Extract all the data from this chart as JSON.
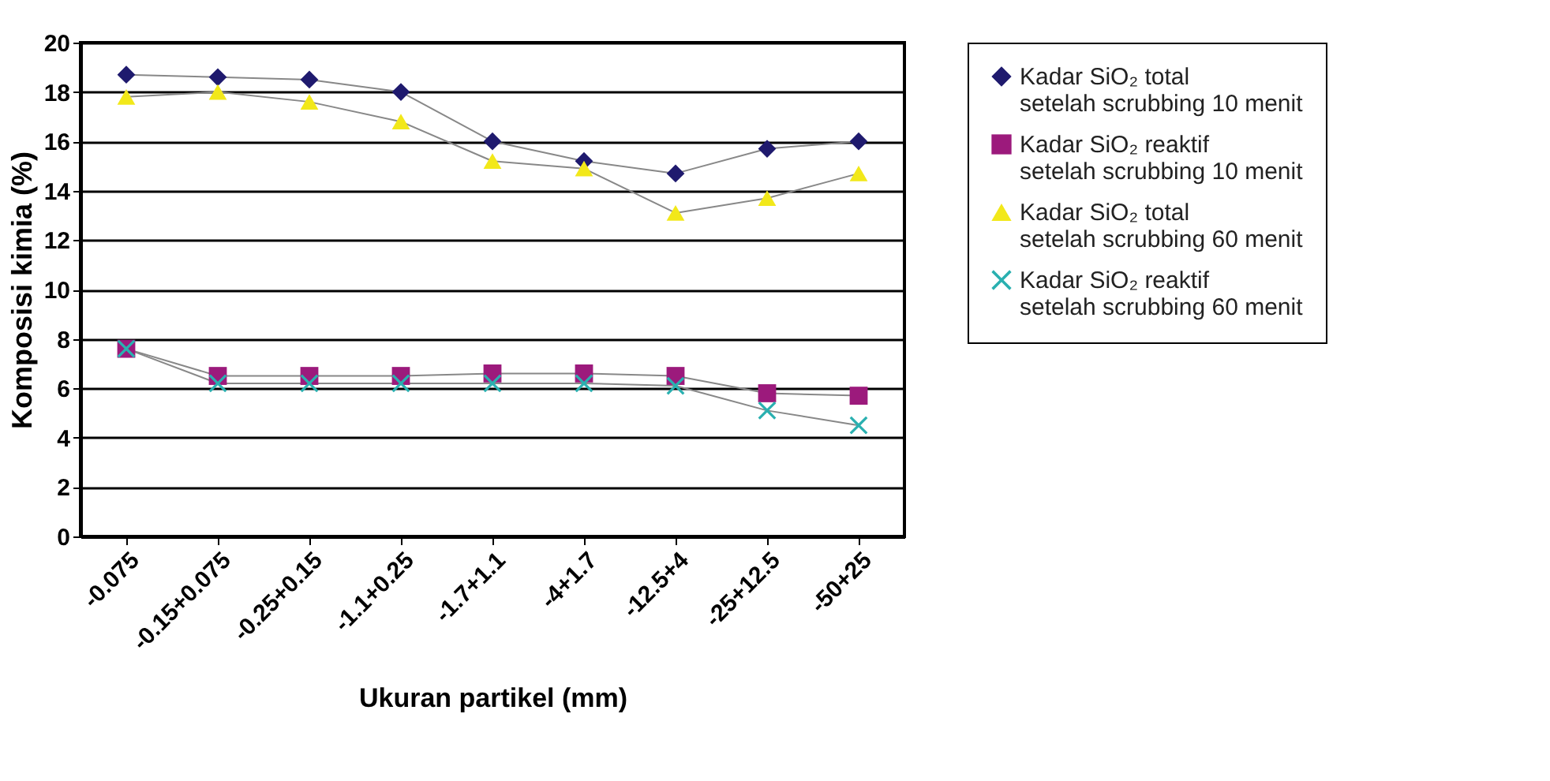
{
  "chart_data": {
    "type": "line",
    "xlabel": "Ukuran partikel (mm)",
    "ylabel": "Komposisi kimia (%)",
    "categories": [
      "-0.075",
      "-0.15+0.075",
      "-0.25+0.15",
      "-1.1+0.25",
      "-1.7+1.1",
      "-4+1.7",
      "-12.5+4",
      "-25+12.5",
      "-50+25"
    ],
    "ylim": [
      0,
      20
    ],
    "yticks": [
      0,
      2,
      4,
      6,
      8,
      10,
      12,
      14,
      16,
      18,
      20
    ],
    "grid": "y",
    "legend": "right",
    "series": [
      {
        "name": "Kadar SiO₂ total setelah scrubbing 10 menit",
        "color": "#1f1a6e",
        "marker": "diamond",
        "values": [
          18.7,
          18.6,
          18.5,
          18.0,
          16.0,
          15.2,
          14.7,
          15.7,
          16.0
        ]
      },
      {
        "name": "Kadar SiO₂ reaktif setelah scrubbing 10 menit",
        "color": "#9c1a7c",
        "marker": "square",
        "values": [
          7.6,
          6.5,
          6.5,
          6.5,
          6.6,
          6.6,
          6.5,
          5.8,
          5.7
        ]
      },
      {
        "name": "Kadar SiO₂ total setelah scrubbing 60 menit",
        "color": "#f2e81a",
        "marker": "triangle",
        "values": [
          17.8,
          18.0,
          17.6,
          16.8,
          15.2,
          14.9,
          13.1,
          13.7,
          14.7
        ]
      },
      {
        "name": "Kadar SiO₂ reaktif setelah scrubbing 60 menit",
        "color": "#2ab0b0",
        "marker": "cross",
        "values": [
          7.6,
          6.2,
          6.2,
          6.2,
          6.2,
          6.2,
          6.1,
          5.1,
          4.5
        ]
      }
    ]
  }
}
